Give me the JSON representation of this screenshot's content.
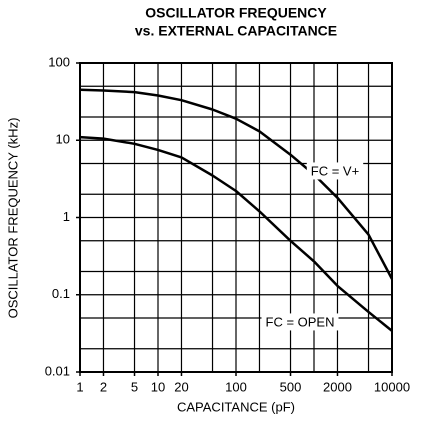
{
  "chart_data": {
    "type": "line",
    "title": [
      "OSCILLATOR FREQUENCY",
      "vs. EXTERNAL CAPACITANCE"
    ],
    "xlabel": "CAPACITANCE (pF)",
    "ylabel": "OSCILLATOR FREQUENCY (kHz)",
    "xlog": true,
    "ylog": true,
    "grid": true,
    "x": [
      1,
      2,
      5,
      10,
      20,
      50,
      100,
      200,
      500,
      1000,
      2000,
      5000,
      10000
    ],
    "series": [
      {
        "name": "FC = V+",
        "color": "#000000",
        "values": [
          45,
          44,
          42,
          38,
          33,
          25,
          19,
          13,
          6.5,
          3.6,
          1.8,
          0.6,
          0.16
        ]
      },
      {
        "name": "FC = OPEN",
        "color": "#000000",
        "values": [
          11,
          10.5,
          9,
          7.5,
          6,
          3.5,
          2.2,
          1.2,
          0.5,
          0.27,
          0.13,
          0.06,
          0.034
        ]
      }
    ],
    "xlim": [
      1,
      10000
    ],
    "ylim": [
      0.01,
      100
    ],
    "xticks": [
      1,
      2,
      5,
      10,
      20,
      100,
      500,
      2000,
      10000
    ],
    "yticks": [
      0.01,
      0.1,
      1,
      10,
      100
    ],
    "xgrid": [
      1,
      2,
      5,
      10,
      20,
      50,
      100,
      200,
      500,
      1000,
      2000,
      5000,
      10000
    ],
    "ygrid": [
      0.01,
      0.02,
      0.05,
      0.1,
      0.2,
      0.5,
      1,
      2,
      5,
      10,
      20,
      50,
      100
    ]
  }
}
